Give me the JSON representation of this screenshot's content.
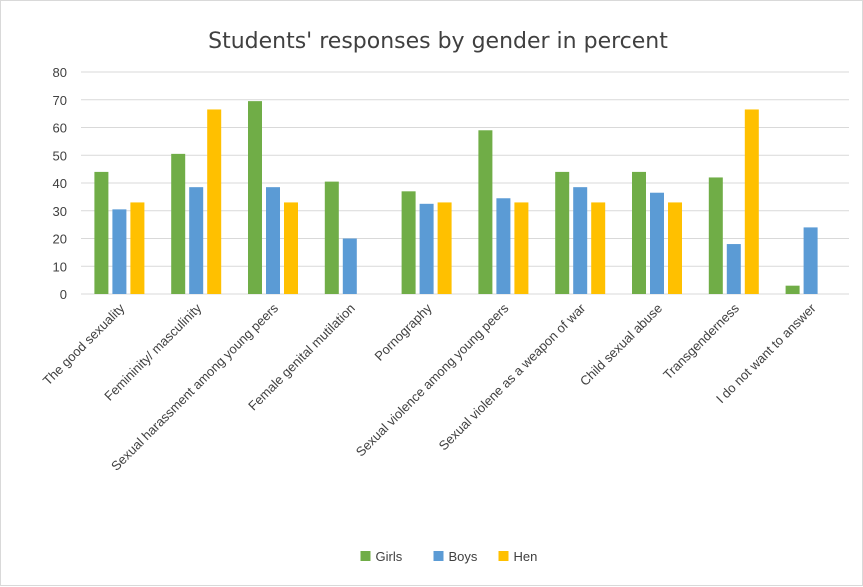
{
  "chart_data": {
    "type": "bar",
    "title": "Students' responses by gender in percent",
    "xlabel": "",
    "ylabel": "",
    "ylim": [
      0,
      80
    ],
    "yticks": [
      0,
      10,
      20,
      30,
      40,
      50,
      60,
      70,
      80
    ],
    "grid": true,
    "legend_position": "bottom",
    "categories": [
      "The good sexuality",
      "Femininity/ masculinity",
      "Sexual harassment among young peers",
      "Female genital mutilation",
      "Pornography",
      "Sexual violence among young peers",
      "Sexual violene as a weapon of war",
      "Child sexual abuse",
      "Transgenderness",
      "I do not want to answer"
    ],
    "series": [
      {
        "name": "Girls",
        "color": "#70ad47",
        "values": [
          44,
          50.5,
          69.5,
          40.5,
          37,
          59,
          44,
          44,
          42,
          3
        ]
      },
      {
        "name": "Boys",
        "color": "#5b9bd5",
        "values": [
          30.5,
          38.5,
          38.5,
          20,
          32.5,
          34.5,
          38.5,
          36.5,
          18,
          24
        ]
      },
      {
        "name": "Hen",
        "color": "#ffc000",
        "values": [
          33,
          66.5,
          33,
          null,
          33,
          33,
          33,
          33,
          66.5,
          null
        ]
      }
    ]
  }
}
